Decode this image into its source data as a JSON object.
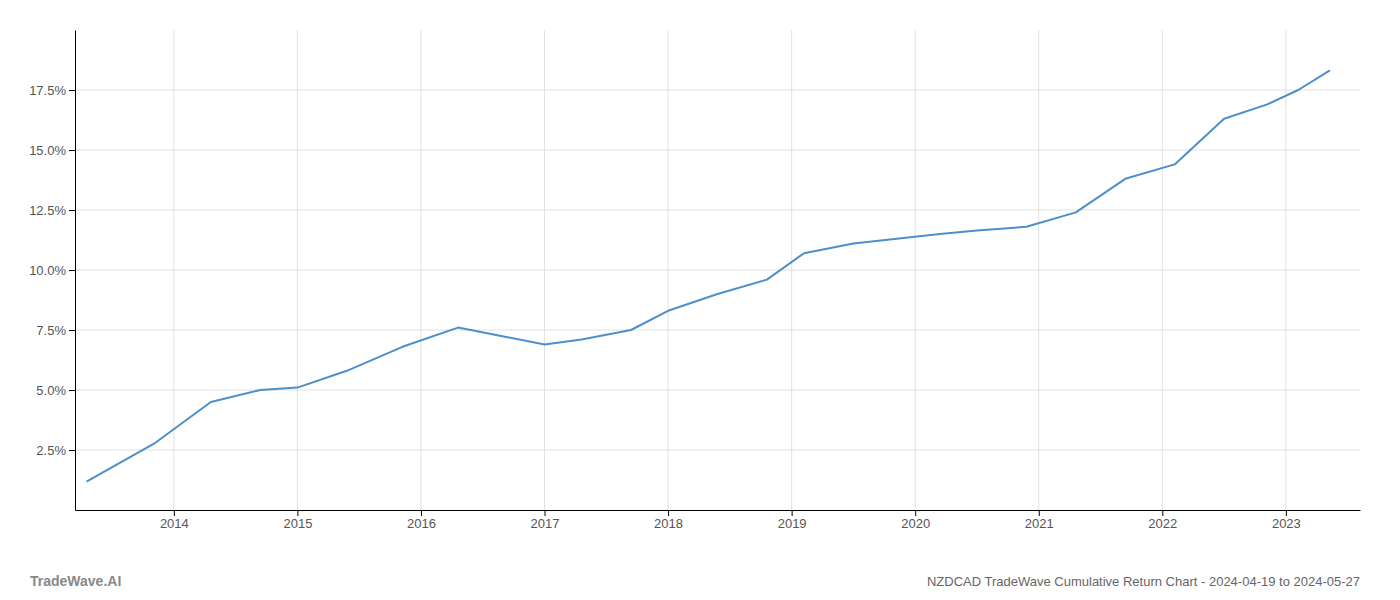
{
  "chart_data": {
    "type": "line",
    "title": "NZDCAD TradeWave Cumulative Return Chart - 2024-04-19 to 2024-05-27",
    "annotations": [
      "TradeWave.AI"
    ],
    "x": [
      2013.3,
      2013.85,
      2014.3,
      2014.7,
      2015.0,
      2015.4,
      2015.85,
      2016.3,
      2016.7,
      2017.0,
      2017.3,
      2017.7,
      2018.0,
      2018.4,
      2018.8,
      2019.1,
      2019.5,
      2019.85,
      2020.2,
      2020.5,
      2020.9,
      2021.3,
      2021.7,
      2022.1,
      2022.5,
      2022.85,
      2023.1,
      2023.35
    ],
    "values": [
      1.2,
      2.8,
      4.5,
      5.0,
      5.1,
      5.8,
      6.8,
      7.6,
      7.2,
      6.9,
      7.1,
      7.5,
      8.3,
      9.0,
      9.6,
      10.7,
      11.1,
      11.3,
      11.5,
      11.65,
      11.8,
      12.4,
      13.8,
      14.4,
      16.3,
      16.9,
      17.5,
      18.3
    ],
    "color": "#4d8fc9",
    "xlim": [
      2013.2,
      2023.6
    ],
    "ylim": [
      0,
      20
    ],
    "xticks": [
      2014,
      2015,
      2016,
      2017,
      2018,
      2019,
      2020,
      2021,
      2022,
      2023
    ],
    "yticks": [
      {
        "value": 2.5,
        "label": "2.5%"
      },
      {
        "value": 5.0,
        "label": "5.0%"
      },
      {
        "value": 7.5,
        "label": "7.5%"
      },
      {
        "value": 10.0,
        "label": "10.0%"
      },
      {
        "value": 12.5,
        "label": "12.5%"
      },
      {
        "value": 15.0,
        "label": "15.0%"
      },
      {
        "value": 17.5,
        "label": "17.5%"
      }
    ],
    "grid": true
  }
}
